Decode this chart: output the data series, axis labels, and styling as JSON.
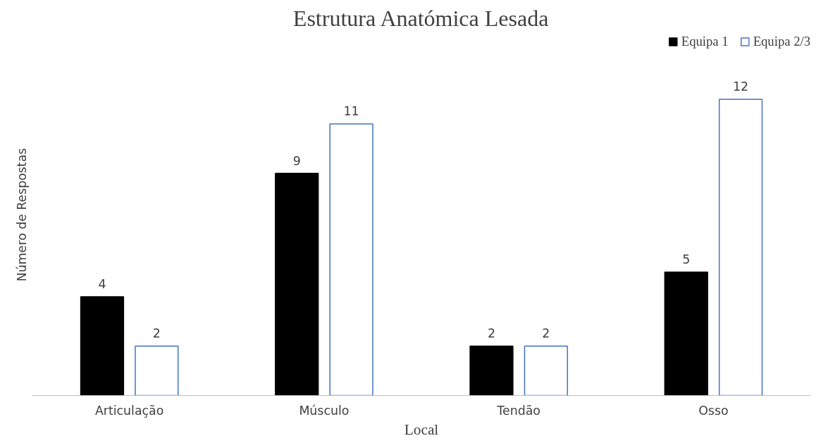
{
  "chart_data": {
    "type": "bar",
    "title": "Estrutura Anatómica Lesada",
    "xlabel": "Local",
    "ylabel": "Número de Respostas",
    "categories": [
      "Articulação",
      "Músculo",
      "Tendão",
      "Osso"
    ],
    "series": [
      {
        "name": "Equipa 1",
        "color": "#000000",
        "values": [
          4,
          9,
          2,
          5
        ]
      },
      {
        "name": "Equipa 2/3",
        "color": "#4472c4",
        "values": [
          2,
          11,
          2,
          12
        ]
      }
    ],
    "data_labels": true,
    "legend": "top right",
    "grid": false,
    "tick_labels": "x"
  }
}
